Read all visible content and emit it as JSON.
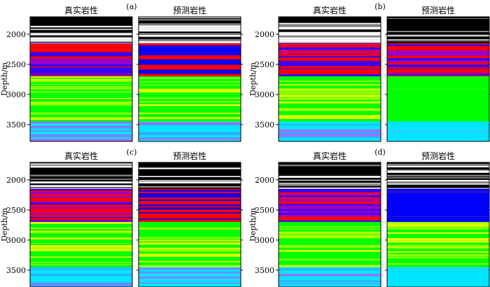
{
  "chart_data": [
    {
      "type": "heatmap",
      "panel_label": "(a)",
      "ylabel": "Depth/m",
      "yticks": [
        2000,
        2500,
        3000,
        3500
      ],
      "ylim": [
        1710,
        3780
      ],
      "columns": [
        "真实岩性",
        "预测岩性"
      ],
      "colors": [
        "#000000",
        "#ffffff",
        "#ff0000",
        "#0000ff",
        "#00ff00",
        "#ccff00",
        "#00e5ff",
        "#9966ff"
      ],
      "true_zones": [
        {
          "from": 1710,
          "to": 2150,
          "lithology": "black-white laminae"
        },
        {
          "from": 2150,
          "to": 2700,
          "lithology": "red-blue-purple"
        },
        {
          "from": 2700,
          "to": 3450,
          "lithology": "green-yellow"
        },
        {
          "from": 3450,
          "to": 3780,
          "lithology": "cyan-purple"
        }
      ],
      "predicted_zones": [
        {
          "from": 1710,
          "to": 2150,
          "lithology": "black-white laminae"
        },
        {
          "from": 2150,
          "to": 2700,
          "lithology": "red-blue"
        },
        {
          "from": 2700,
          "to": 3450,
          "lithology": "green-yellow"
        },
        {
          "from": 3450,
          "to": 3780,
          "lithology": "cyan-purple"
        }
      ]
    },
    {
      "type": "heatmap",
      "panel_label": "(b)",
      "ylabel": "Depth/m",
      "yticks": [
        2000,
        2500,
        3000,
        3500
      ],
      "ylim": [
        1710,
        3780
      ],
      "columns": [
        "真实岩性",
        "预测岩性"
      ],
      "true_zones": [
        {
          "from": 1710,
          "to": 2150,
          "lithology": "black-white laminae"
        },
        {
          "from": 2150,
          "to": 2700,
          "lithology": "red-blue-purple"
        },
        {
          "from": 2700,
          "to": 3450,
          "lithology": "green-yellow"
        },
        {
          "from": 3450,
          "to": 3780,
          "lithology": "cyan-purple"
        }
      ],
      "predicted_zones": [
        {
          "from": 1710,
          "to": 2150,
          "lithology": "black-white laminae"
        },
        {
          "from": 2150,
          "to": 2700,
          "lithology": "red-blue-purple"
        },
        {
          "from": 2700,
          "to": 3450,
          "lithology": "green"
        },
        {
          "from": 3450,
          "to": 3780,
          "lithology": "cyan"
        }
      ]
    },
    {
      "type": "heatmap",
      "panel_label": "(c)",
      "ylabel": "Depth/m",
      "yticks": [
        2000,
        2500,
        3000,
        3500
      ],
      "ylim": [
        1710,
        3780
      ],
      "columns": [
        "真实岩性",
        "预测岩性"
      ],
      "true_zones": [
        {
          "from": 1710,
          "to": 2150,
          "lithology": "black-white laminae"
        },
        {
          "from": 2150,
          "to": 2700,
          "lithology": "red-blue-purple"
        },
        {
          "from": 2700,
          "to": 3450,
          "lithology": "green-yellow"
        },
        {
          "from": 3450,
          "to": 3780,
          "lithology": "cyan-purple"
        }
      ],
      "predicted_zones": [
        {
          "from": 1710,
          "to": 2150,
          "lithology": "black-white laminae"
        },
        {
          "from": 2150,
          "to": 2700,
          "lithology": "red-blue"
        },
        {
          "from": 2700,
          "to": 3450,
          "lithology": "green-yellow"
        },
        {
          "from": 3450,
          "to": 3780,
          "lithology": "cyan-purple"
        }
      ]
    },
    {
      "type": "heatmap",
      "panel_label": "(d)",
      "ylabel": "Depth/m",
      "yticks": [
        2000,
        2500,
        3000,
        3500
      ],
      "ylim": [
        1710,
        3780
      ],
      "columns": [
        "真实岩性",
        "预测岩性"
      ],
      "true_zones": [
        {
          "from": 1710,
          "to": 2150,
          "lithology": "black-white laminae"
        },
        {
          "from": 2150,
          "to": 2700,
          "lithology": "red-blue-purple"
        },
        {
          "from": 2700,
          "to": 3450,
          "lithology": "green-yellow"
        },
        {
          "from": 3450,
          "to": 3780,
          "lithology": "cyan-purple"
        }
      ],
      "predicted_zones": [
        {
          "from": 1710,
          "to": 2150,
          "lithology": "black-white laminae"
        },
        {
          "from": 2150,
          "to": 2700,
          "lithology": "blue"
        },
        {
          "from": 2700,
          "to": 3450,
          "lithology": "green-yellow"
        },
        {
          "from": 3450,
          "to": 3780,
          "lithology": "cyan"
        }
      ]
    }
  ]
}
